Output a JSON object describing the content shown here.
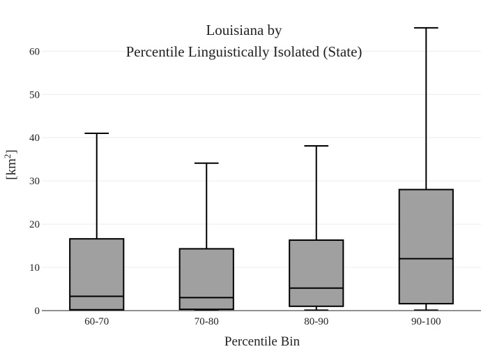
{
  "chart_data": {
    "type": "box",
    "title_line1": "Louisiana  by",
    "title_line2": "Percentile Linguistically Isolated (State)",
    "xlabel": "Percentile Bin",
    "ylabel_base": "[km",
    "ylabel_sup": "2",
    "ylabel_end": "]",
    "ylim": [
      0,
      67
    ],
    "yticks": [
      0,
      10,
      20,
      30,
      40,
      50,
      60
    ],
    "grid": true,
    "box_color": "#a0a0a0",
    "line_color": "#000000",
    "categories": [
      "60-70",
      "70-80",
      "80-90",
      "90-100"
    ],
    "boxes": [
      {
        "min": 0.1,
        "q1": 0.2,
        "median": 3.3,
        "q3": 16.6,
        "max": 41.0
      },
      {
        "min": 0.1,
        "q1": 0.3,
        "median": 3.0,
        "q3": 14.3,
        "max": 34.1
      },
      {
        "min": 0.1,
        "q1": 1.0,
        "median": 5.2,
        "q3": 16.3,
        "max": 38.1
      },
      {
        "min": 0.1,
        "q1": 1.6,
        "median": 12.0,
        "q3": 28.0,
        "max": 65.4
      }
    ]
  }
}
